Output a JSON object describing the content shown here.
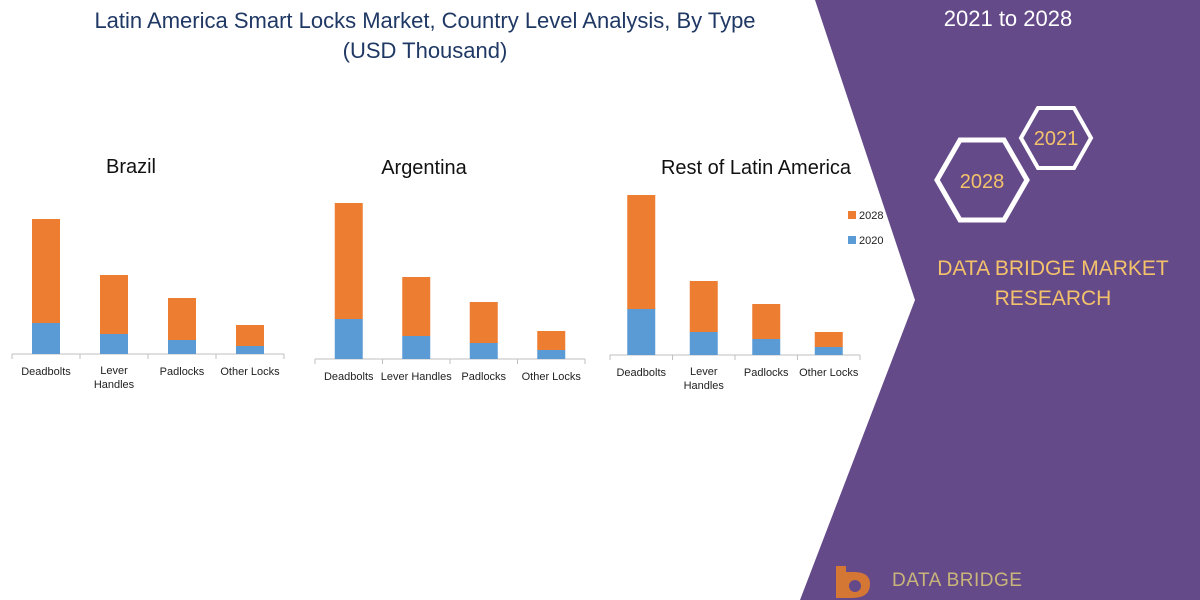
{
  "header": {
    "title_line1": "Latin America Smart Locks Market, Country Level Analysis, By Type",
    "title_line2": "(USD Thousand)",
    "years": "2021 to 2028"
  },
  "brand": {
    "hex_top": "2021",
    "hex_bottom": "2028",
    "line1": "DATA BRIDGE MARKET",
    "line2": "RESEARCH",
    "footer_logo": "DATA BRIDGE",
    "colors": {
      "panel": "#654a8a",
      "accent": "#f4c26b",
      "hex_stroke": "#ffffff"
    }
  },
  "legend": {
    "items": [
      {
        "name": "2028",
        "color": "#ed7d31"
      },
      {
        "name": "2020",
        "color": "#5b9bd5"
      }
    ]
  },
  "chart_data": [
    {
      "type": "bar",
      "stacked": true,
      "title": "Brazil",
      "categories": [
        "Deadbolts",
        "Lever Handles",
        "Padlocks",
        "Other Locks"
      ],
      "series": [
        {
          "name": "2020",
          "color": "#5b9bd5",
          "values": [
            31,
            20,
            14,
            8
          ]
        },
        {
          "name": "2028",
          "color": "#ed7d31",
          "values": [
            104,
            59,
            42,
            21
          ]
        }
      ],
      "ylim": [
        0,
        160
      ]
    },
    {
      "type": "bar",
      "stacked": true,
      "title": "Argentina",
      "categories": [
        "Deadbolts",
        "Lever Handles",
        "Padlocks",
        "Other Locks"
      ],
      "series": [
        {
          "name": "2020",
          "color": "#5b9bd5",
          "values": [
            40,
            23,
            16,
            9
          ]
        },
        {
          "name": "2028",
          "color": "#ed7d31",
          "values": [
            116,
            59,
            41,
            19
          ]
        }
      ],
      "ylim": [
        0,
        160
      ]
    },
    {
      "type": "bar",
      "stacked": true,
      "title": "Rest of Latin America",
      "categories": [
        "Deadbolts",
        "Lever Handles",
        "Padlocks",
        "Other Locks"
      ],
      "series": [
        {
          "name": "2020",
          "color": "#5b9bd5",
          "values": [
            46,
            23,
            16,
            8
          ]
        },
        {
          "name": "2028",
          "color": "#ed7d31",
          "values": [
            114,
            51,
            35,
            15
          ]
        }
      ],
      "ylim": [
        0,
        160
      ]
    }
  ]
}
